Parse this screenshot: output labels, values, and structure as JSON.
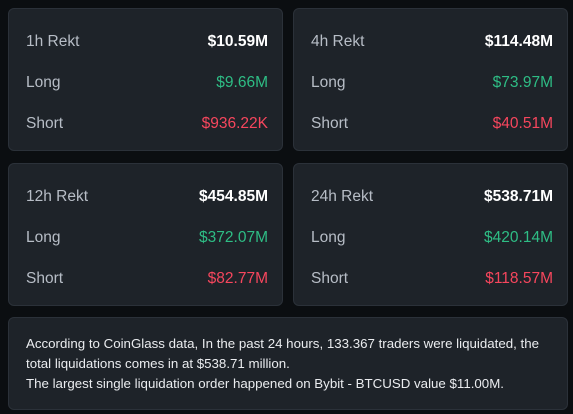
{
  "cards": [
    {
      "title": "1h Rekt",
      "total": "$10.59M",
      "long_label": "Long",
      "long_value": "$9.66M",
      "short_label": "Short",
      "short_value": "$936.22K"
    },
    {
      "title": "4h Rekt",
      "total": "$114.48M",
      "long_label": "Long",
      "long_value": "$73.97M",
      "short_label": "Short",
      "short_value": "$40.51M"
    },
    {
      "title": "12h Rekt",
      "total": "$454.85M",
      "long_label": "Long",
      "long_value": "$372.07M",
      "short_label": "Short",
      "short_value": "$82.77M"
    },
    {
      "title": "24h Rekt",
      "total": "$538.71M",
      "long_label": "Long",
      "long_value": "$420.14M",
      "short_label": "Short",
      "short_value": "$118.57M"
    }
  ],
  "summary": {
    "line1": "According to CoinGlass data, In the past 24 hours, 133.367 traders were liquidated, the total liquidations comes in at $538.71 million.",
    "line2": "The largest single liquidation order happened on Bybit - BTCUSD value $11.00M."
  },
  "colors": {
    "background": "#0b0e11",
    "card": "#1e2329",
    "long": "#2ebd85",
    "short": "#f6465d"
  }
}
